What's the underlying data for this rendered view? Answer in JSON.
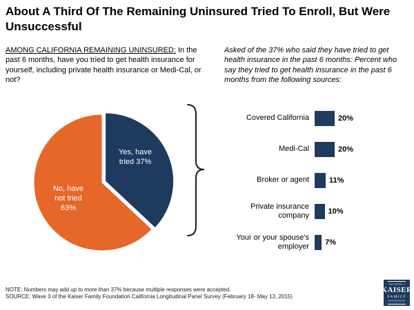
{
  "title": "About A Third Of The Remaining Uninsured Tried To Enroll, But Were Unsuccessful",
  "questions": {
    "left_lead": "AMONG CALIFORNIA REMAINING UNINSURED:",
    "left_text": " In the past 6 months, have you tried to get health insurance for yourself, including private health insurance or Medi-Cal, or not?",
    "right_italic": "Asked of the 37% who said they have tried to get health insurance in the past 6 months:",
    "right_text": " Percent who say they tried to get health insurance in the past 6 months from the following sources:"
  },
  "chart_data": [
    {
      "type": "pie",
      "slices": [
        {
          "label": "Yes, have tried 37%",
          "value": 37,
          "color": "#1e3a5f"
        },
        {
          "label": "No, have not tried 63%",
          "value": 63,
          "color": "#e5672a"
        }
      ],
      "exploded_slice": "Yes, have tried 37%",
      "start_angle_deg": 0,
      "direction": "clockwise"
    },
    {
      "type": "bar",
      "orientation": "horizontal",
      "categories": [
        "Covered California",
        "Medi-Cal",
        "Broker or agent",
        "Private insurance company",
        "Your or your spouse's employer"
      ],
      "values": [
        20,
        20,
        11,
        10,
        7
      ],
      "value_labels": [
        "20%",
        "20%",
        "11%",
        "10%",
        "7%"
      ],
      "bar_color": "#1e3a5f",
      "xlim": [
        0,
        100
      ],
      "grid": false,
      "legend": "none"
    }
  ],
  "footer": {
    "note": "NOTE: Numbers may add up to more than 37% because multiple responses were accepted.",
    "source": "SOURCE: Wave 3 of the Kaiser Family Foundation California Longitudinal Panel Survey (February 18- May 13, 2015)"
  },
  "logo": {
    "line1": "THE HENRY J.",
    "line2": "KAISER",
    "line3": "FAMILY",
    "line4": "FOUNDATION"
  },
  "colors": {
    "navy": "#1e3a5f",
    "orange": "#e5672a",
    "brace": "#1a1a1a"
  }
}
